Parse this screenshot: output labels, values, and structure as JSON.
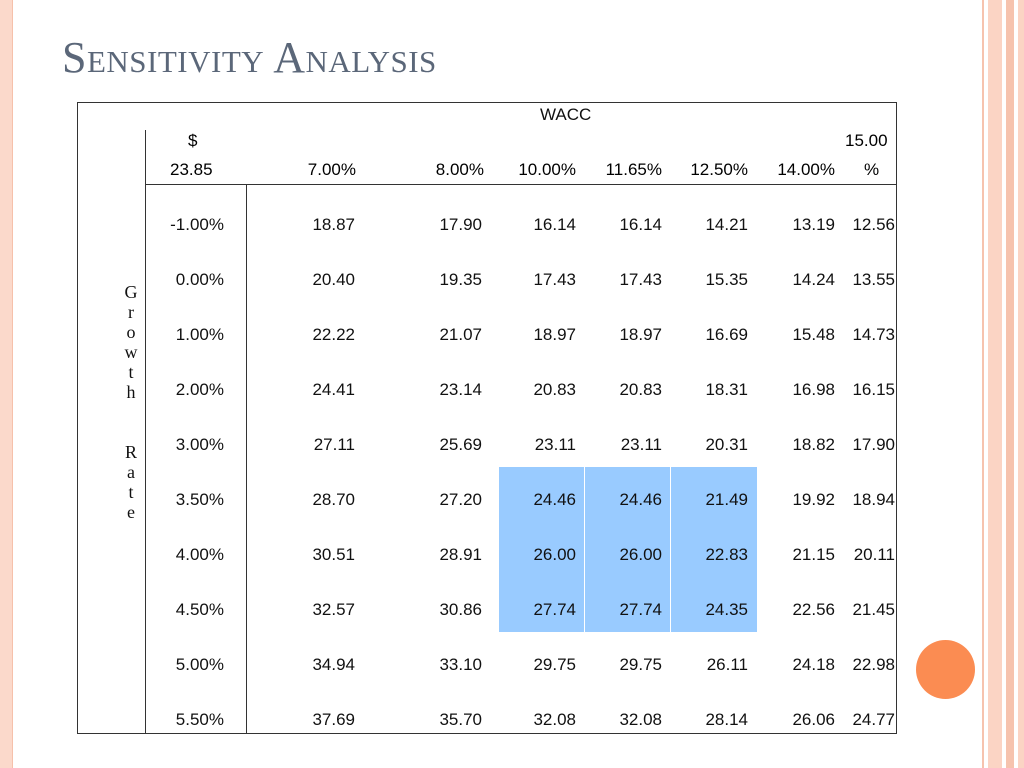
{
  "slide": {
    "title": "Sensitivity Analysis"
  },
  "table": {
    "column_group_label": "WACC",
    "row_group_label": "Growth Rate",
    "base_value_symbol": "$",
    "base_value": "23.85",
    "wacc_headers": [
      "7.00%",
      "8.00%",
      "10.00%",
      "11.65%",
      "12.50%",
      "14.00%"
    ],
    "last_wacc_header_line1": "15.00",
    "last_wacc_header_line2": "%",
    "rows": [
      {
        "growth": "-1.00%",
        "values": [
          "18.87",
          "17.90",
          "16.14",
          "16.14",
          "14.21",
          "13.19",
          "12.56"
        ]
      },
      {
        "growth": "0.00%",
        "values": [
          "20.40",
          "19.35",
          "17.43",
          "17.43",
          "15.35",
          "14.24",
          "13.55"
        ]
      },
      {
        "growth": "1.00%",
        "values": [
          "22.22",
          "21.07",
          "18.97",
          "18.97",
          "16.69",
          "15.48",
          "14.73"
        ]
      },
      {
        "growth": "2.00%",
        "values": [
          "24.41",
          "23.14",
          "20.83",
          "20.83",
          "18.31",
          "16.98",
          "16.15"
        ]
      },
      {
        "growth": "3.00%",
        "values": [
          "27.11",
          "25.69",
          "23.11",
          "23.11",
          "20.31",
          "18.82",
          "17.90"
        ]
      },
      {
        "growth": "3.50%",
        "values": [
          "28.70",
          "27.20",
          "24.46",
          "24.46",
          "21.49",
          "19.92",
          "18.94"
        ]
      },
      {
        "growth": "4.00%",
        "values": [
          "30.51",
          "28.91",
          "26.00",
          "26.00",
          "22.83",
          "21.15",
          "20.11"
        ]
      },
      {
        "growth": "4.50%",
        "values": [
          "32.57",
          "30.86",
          "27.74",
          "27.74",
          "24.35",
          "22.56",
          "21.45"
        ]
      },
      {
        "growth": "5.00%",
        "values": [
          "34.94",
          "33.10",
          "29.75",
          "29.75",
          "26.11",
          "24.18",
          "22.98"
        ]
      },
      {
        "growth": "5.50%",
        "values": [
          "37.69",
          "35.70",
          "32.08",
          "32.08",
          "28.14",
          "26.06",
          "24.77"
        ]
      }
    ],
    "highlight_color": "#99cbff",
    "highlighted_rows": [
      "3.50%",
      "4.00%",
      "4.50%"
    ],
    "highlighted_columns": [
      "10.00%",
      "11.65%",
      "12.50%"
    ]
  },
  "colors": {
    "title": "#5b6779",
    "accent_orange": "#fb8c52",
    "border_peach": "#fbd4c4"
  }
}
